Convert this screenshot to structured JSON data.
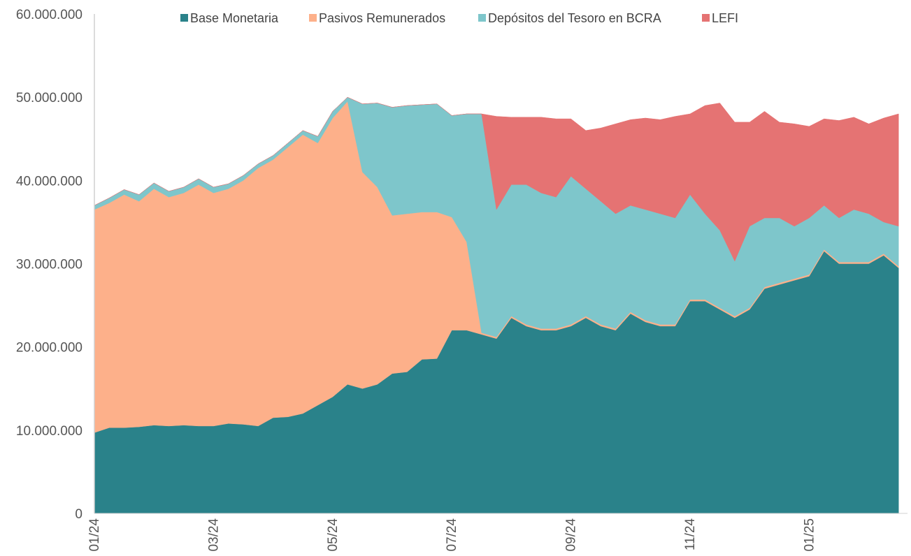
{
  "chart_data": {
    "type": "stacked-area",
    "categories": [
      "01/24",
      null,
      null,
      null,
      null,
      null,
      null,
      null,
      "03/24",
      null,
      null,
      null,
      null,
      null,
      null,
      null,
      "05/24",
      null,
      null,
      null,
      null,
      null,
      null,
      null,
      "07/24",
      null,
      null,
      null,
      null,
      null,
      null,
      null,
      "09/24",
      null,
      null,
      null,
      null,
      null,
      null,
      null,
      "11/24",
      null,
      null,
      null,
      null,
      null,
      null,
      null,
      "01/25",
      null,
      null,
      null,
      null,
      null,
      null
    ],
    "series": [
      {
        "name": "Base Monetaria",
        "color": "#2a828a",
        "values": [
          9700000,
          10300000,
          10300000,
          10400000,
          10600000,
          10500000,
          10600000,
          10500000,
          10500000,
          10800000,
          10700000,
          10500000,
          11500000,
          11600000,
          12000000,
          13000000,
          14000000,
          15500000,
          15000000,
          15500000,
          16800000,
          17000000,
          18500000,
          18600000,
          22000000,
          22000000,
          21500000,
          21000000,
          23500000,
          22500000,
          22000000,
          22000000,
          22500000,
          23500000,
          22500000,
          22000000,
          24000000,
          23000000,
          22500000,
          22500000,
          25500000,
          25500000,
          24500000,
          23500000,
          24500000,
          27000000,
          27500000,
          28000000,
          28500000,
          31500000,
          30000000,
          30000000,
          30000000,
          31000000,
          29500000
        ]
      },
      {
        "name": "Pasivos Remunerados",
        "color": "#fdb08a",
        "values": [
          26800000,
          27000000,
          28000000,
          27100000,
          28400000,
          27500000,
          27900000,
          29000000,
          28000000,
          28200000,
          29300000,
          31000000,
          31000000,
          32400000,
          33500000,
          31500000,
          33500000,
          34000000,
          26000000,
          23700000,
          19000000,
          19000000,
          17700000,
          17600000,
          13600000,
          10600000,
          200000,
          200000,
          200000,
          200000,
          200000,
          200000,
          200000,
          200000,
          200000,
          200000,
          200000,
          200000,
          200000,
          200000,
          200000,
          200000,
          200000,
          200000,
          200000,
          200000,
          200000,
          200000,
          200000,
          200000,
          200000,
          200000,
          200000,
          200000,
          200000
        ]
      },
      {
        "name": "Depósitos del Tesoro en BCRA",
        "color": "#7ec6cb",
        "values": [
          500000,
          600000,
          600000,
          800000,
          700000,
          700000,
          700000,
          700000,
          700000,
          600000,
          600000,
          500000,
          500000,
          500000,
          500000,
          800000,
          800000,
          500000,
          8200000,
          10100000,
          13000000,
          13000000,
          12900000,
          13000000,
          12200000,
          15400000,
          26300000,
          15300000,
          15800000,
          16800000,
          16300000,
          15800000,
          17800000,
          15300000,
          14800000,
          13800000,
          12800000,
          13300000,
          13300000,
          12800000,
          12600000,
          10300000,
          9300000,
          6600000,
          9800000,
          8300000,
          7800000,
          6300000,
          6800000,
          5300000,
          5300000,
          6300000,
          5800000,
          3800000,
          4800000
        ]
      },
      {
        "name": "LEFI",
        "color": "#e57373",
        "values": [
          0,
          0,
          0,
          0,
          0,
          0,
          0,
          0,
          0,
          0,
          0,
          0,
          0,
          0,
          0,
          0,
          0,
          0,
          0,
          0,
          0,
          0,
          0,
          0,
          0,
          0,
          0,
          11200000,
          8100000,
          8100000,
          9100000,
          9400000,
          6900000,
          7000000,
          8800000,
          10800000,
          10300000,
          11000000,
          11300000,
          12200000,
          9700000,
          13000000,
          15300000,
          16700000,
          12500000,
          12800000,
          11500000,
          12300000,
          11000000,
          10400000,
          11700000,
          11100000,
          10800000,
          12500000,
          13500000
        ]
      }
    ],
    "ylim": [
      0,
      60000000
    ],
    "yticks": [
      0,
      {
        "value": 10000000,
        "label": "10.000.000"
      },
      {
        "value": 20000000,
        "label": "20.000.000"
      },
      {
        "value": 30000000,
        "label": "30.000.000"
      },
      {
        "value": 40000000,
        "label": "40.000.000"
      },
      {
        "value": 50000000,
        "label": "50.000.000"
      },
      {
        "value": 60000000,
        "label": "60.000.000"
      }
    ],
    "grid": false,
    "legend": "top"
  }
}
